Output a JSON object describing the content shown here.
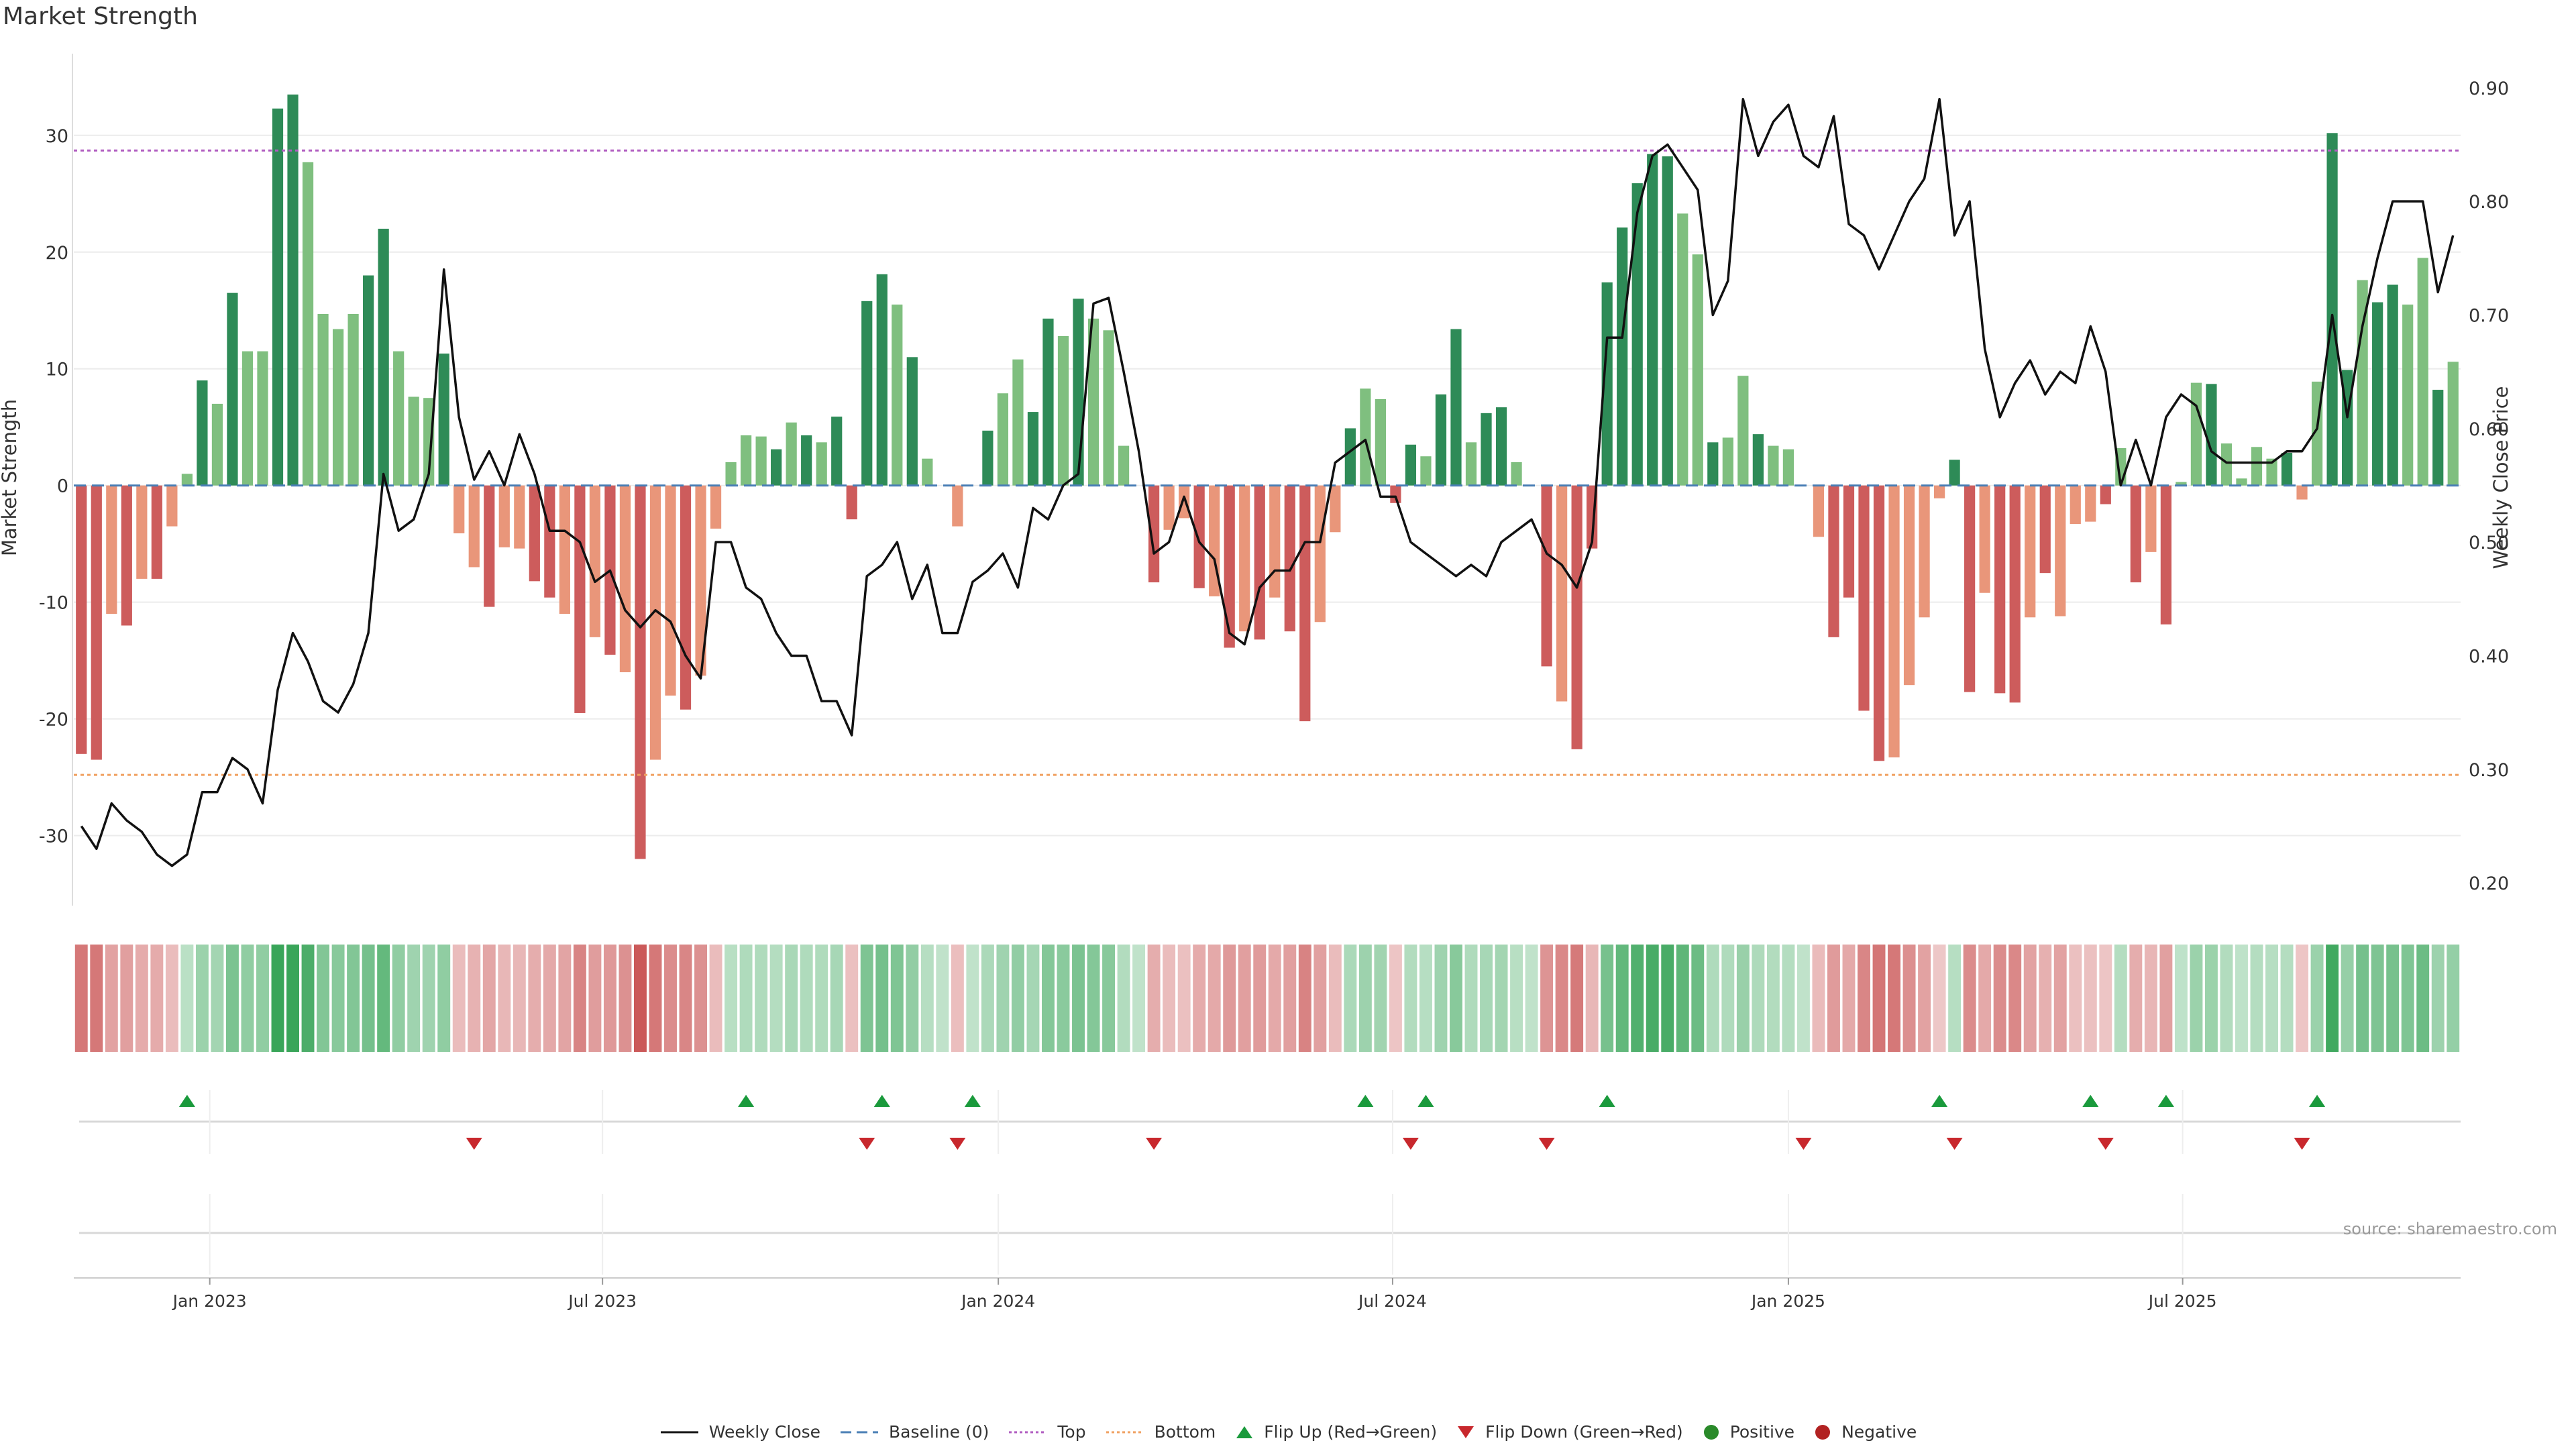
{
  "title": "Market Strength",
  "source": "source: sharemaestro.com",
  "legend": {
    "weekly_close": "Weekly Close",
    "baseline": "Baseline (0)",
    "top": "Top",
    "bottom": "Bottom",
    "flip_up": "Flip Up (Red→Green)",
    "flip_down": "Flip Down (Green→Red)",
    "positive": "Positive",
    "negative": "Negative"
  },
  "colors": {
    "dark_green": "#2e8b57",
    "light_green": "#7fbf7f",
    "dark_red": "#cd5c5c",
    "light_red": "#e9967a",
    "close_line": "#111111",
    "baseline": "#4a7fb5",
    "top_line": "#b05cc0",
    "bottom_line": "#f0a060",
    "flip_up": "#1a9a3c",
    "flip_down": "#c8282d",
    "positive_dot": "#2a8a2a",
    "negative_dot": "#b22222"
  },
  "chart_data": {
    "type": "bar",
    "title": "Market Strength",
    "ylabel_left": "Market Strength",
    "ylabel_right": "Weekly Close Price",
    "ylim_left": [
      -36,
      37
    ],
    "ylim_right": [
      0.18,
      0.93
    ],
    "left_ticks": [
      30,
      20,
      10,
      0,
      -10,
      -20,
      -30
    ],
    "right_ticks": [
      "0.90",
      "0.80",
      "0.70",
      "0.60",
      "0.50",
      "0.40",
      "0.30",
      "0.20"
    ],
    "x_tick_labels": [
      "Jan 2023",
      "Jul 2023",
      "Jan 2024",
      "Jul 2024",
      "Jan 2025",
      "Jul 2025"
    ],
    "x_tick_weeks": [
      8.5,
      34.5,
      60.7,
      86.8,
      113.0,
      139.1
    ],
    "top_level": 28.7,
    "bottom_level": -24.8,
    "strength": [
      -23,
      -23.5,
      -11,
      -12,
      -8,
      -8,
      -3.5,
      1,
      9,
      7,
      16.5,
      11.5,
      11.5,
      32.3,
      33.5,
      27.7,
      14.7,
      13.4,
      14.7,
      18,
      22,
      11.5,
      7.6,
      7.5,
      11.3,
      -4.1,
      -7,
      -10.4,
      -5.3,
      -5.4,
      -8.2,
      -9.6,
      -11,
      -19.5,
      -13,
      -14.5,
      -16,
      -32,
      -23.5,
      -18,
      -19.2,
      -16.3,
      -3.7,
      2,
      4.3,
      4.2,
      3.1,
      5.4,
      4.3,
      3.7,
      5.9,
      -2.9,
      15.8,
      18.1,
      15.5,
      11,
      2.3,
      0,
      -3.5,
      0,
      4.7,
      7.9,
      10.8,
      6.3,
      14.3,
      12.8,
      16,
      14.3,
      13.3,
      3.4,
      0,
      -8.3,
      -3.8,
      -2.8,
      -8.8,
      -9.5,
      -13.9,
      -12.5,
      -13.2,
      -9.6,
      -12.5,
      -20.2,
      -11.7,
      -4,
      4.9,
      8.3,
      7.4,
      -1.5,
      3.5,
      2.5,
      7.8,
      13.4,
      3.7,
      6.2,
      6.7,
      2,
      0,
      -15.5,
      -18.5,
      -22.6,
      -5.4,
      17.4,
      22.1,
      25.9,
      28.4,
      28.2,
      23.3,
      19.8,
      3.7,
      4.1,
      9.4,
      4.4,
      3.4,
      3.1,
      0,
      -4.4,
      -13,
      -9.6,
      -19.3,
      -23.6,
      -23.3,
      -17.1,
      -11.3,
      -1.1,
      2.2,
      -17.7,
      -9.2,
      -17.8,
      -18.6,
      -11.3,
      -7.5,
      -11.2,
      -3.3,
      -3.1,
      -1.6,
      3.2,
      -8.3,
      -5.7,
      -11.9,
      0.3,
      8.8,
      8.7,
      3.6,
      0.6,
      3.3,
      2.3,
      2.8,
      -1.2,
      8.9,
      30.2,
      9.9,
      17.6,
      15.7,
      17.2,
      15.5,
      19.5,
      8.2,
      10.6
    ],
    "weekly_close": [
      0.25,
      0.23,
      0.27,
      0.255,
      0.245,
      0.225,
      0.215,
      0.225,
      0.28,
      0.28,
      0.31,
      0.3,
      0.27,
      0.37,
      0.42,
      0.395,
      0.36,
      0.35,
      0.375,
      0.42,
      0.56,
      0.51,
      0.52,
      0.56,
      0.74,
      0.61,
      0.555,
      0.58,
      0.55,
      0.595,
      0.56,
      0.51,
      0.51,
      0.5,
      0.465,
      0.475,
      0.44,
      0.425,
      0.44,
      0.43,
      0.4,
      0.38,
      0.5,
      0.5,
      0.46,
      0.45,
      0.42,
      0.4,
      0.4,
      0.36,
      0.36,
      0.33,
      0.47,
      0.48,
      0.5,
      0.45,
      0.48,
      0.42,
      0.42,
      0.465,
      0.475,
      0.49,
      0.46,
      0.53,
      0.52,
      0.55,
      0.56,
      0.71,
      0.715,
      0.65,
      0.58,
      0.49,
      0.5,
      0.54,
      0.5,
      0.485,
      0.42,
      0.41,
      0.46,
      0.475,
      0.475,
      0.5,
      0.5,
      0.57,
      0.58,
      0.59,
      0.54,
      0.54,
      0.5,
      0.49,
      0.48,
      0.47,
      0.48,
      0.47,
      0.5,
      0.51,
      0.52,
      0.49,
      0.48,
      0.46,
      0.5,
      0.68,
      0.68,
      0.79,
      0.84,
      0.85,
      0.83,
      0.81,
      0.7,
      0.73,
      0.89,
      0.84,
      0.87,
      0.885,
      0.84,
      0.83,
      0.875,
      0.78,
      0.77,
      0.74,
      0.77,
      0.8,
      0.82,
      0.89,
      0.77,
      0.8,
      0.67,
      0.61,
      0.64,
      0.66,
      0.63,
      0.65,
      0.64,
      0.69,
      0.65,
      0.55,
      0.59,
      0.55,
      0.61,
      0.63,
      0.62,
      0.58,
      0.57,
      0.57,
      0.57,
      0.57,
      0.58,
      0.58,
      0.6,
      0.7,
      0.61,
      0.69,
      0.75,
      0.8,
      0.8,
      0.8,
      0.72,
      0.77
    ],
    "flips_up": [
      7,
      44,
      53,
      59,
      85,
      89,
      101,
      123,
      133,
      138,
      148
    ],
    "flips_down": [
      26,
      52,
      58,
      71,
      88,
      97,
      114,
      124,
      134,
      147
    ],
    "heat_values": [
      -0.72,
      -0.73,
      -0.35,
      -0.38,
      -0.27,
      -0.27,
      -0.12,
      0.05,
      0.28,
      0.22,
      0.51,
      0.36,
      0.36,
      1,
      1,
      0.86,
      0.46,
      0.42,
      0.46,
      0.56,
      0.68,
      0.36,
      0.24,
      0.24,
      0.35,
      -0.13,
      -0.22,
      -0.33,
      -0.17,
      -0.17,
      -0.26,
      -0.3,
      -0.34,
      -0.61,
      -0.4,
      -0.45,
      -0.5,
      -1,
      -0.73,
      -0.56,
      -0.6,
      -0.51,
      -0.12,
      0.06,
      0.13,
      0.13,
      0.1,
      0.17,
      0.13,
      0.12,
      0.18,
      -0.09,
      0.49,
      0.56,
      0.48,
      0.34,
      0.07,
      0,
      -0.11,
      0,
      0.15,
      0.25,
      0.34,
      0.2,
      0.44,
      0.4,
      0.5,
      0.44,
      0.41,
      0.11,
      0,
      -0.26,
      -0.12,
      -0.09,
      -0.28,
      -0.3,
      -0.43,
      -0.39,
      -0.41,
      -0.3,
      -0.39,
      -0.63,
      -0.37,
      -0.13,
      0.15,
      0.26,
      0.23,
      -0.05,
      0.11,
      0.08,
      0.24,
      0.42,
      0.12,
      0.19,
      0.21,
      0.06,
      0,
      -0.48,
      -0.58,
      -0.71,
      -0.17,
      0.54,
      0.69,
      0.81,
      0.88,
      0.88,
      0.73,
      0.62,
      0.12,
      0.13,
      0.29,
      0.14,
      0.11,
      0.1,
      0,
      -0.14,
      -0.41,
      -0.3,
      -0.6,
      -0.74,
      -0.73,
      -0.53,
      -0.35,
      -0.03,
      0.07,
      -0.55,
      -0.29,
      -0.56,
      -0.58,
      -0.35,
      -0.23,
      -0.35,
      -0.1,
      -0.1,
      -0.05,
      0.1,
      -0.26,
      -0.18,
      -0.37,
      0.01,
      0.28,
      0.27,
      0.11,
      0.02,
      0.1,
      0.07,
      0.09,
      -0.04,
      0.28,
      0.94,
      0.31,
      0.55,
      0.49,
      0.54,
      0.48,
      0.61,
      0.26,
      0.33
    ],
    "dark_shade_weeks": [
      0,
      1,
      3,
      5,
      8,
      10,
      13,
      14,
      19,
      20,
      24,
      27,
      30,
      31,
      33,
      35,
      37,
      40,
      46,
      48,
      50,
      51,
      52,
      53,
      55,
      60,
      63,
      64,
      66,
      71,
      74,
      76,
      78,
      80,
      81,
      84,
      87,
      88,
      90,
      91,
      93,
      94,
      97,
      99,
      100,
      101,
      102,
      103,
      104,
      105,
      108,
      111,
      116,
      117,
      118,
      119,
      124,
      125,
      127,
      128,
      130,
      134,
      136,
      138,
      141,
      146,
      149,
      150,
      152,
      153,
      156,
      158
    ]
  }
}
